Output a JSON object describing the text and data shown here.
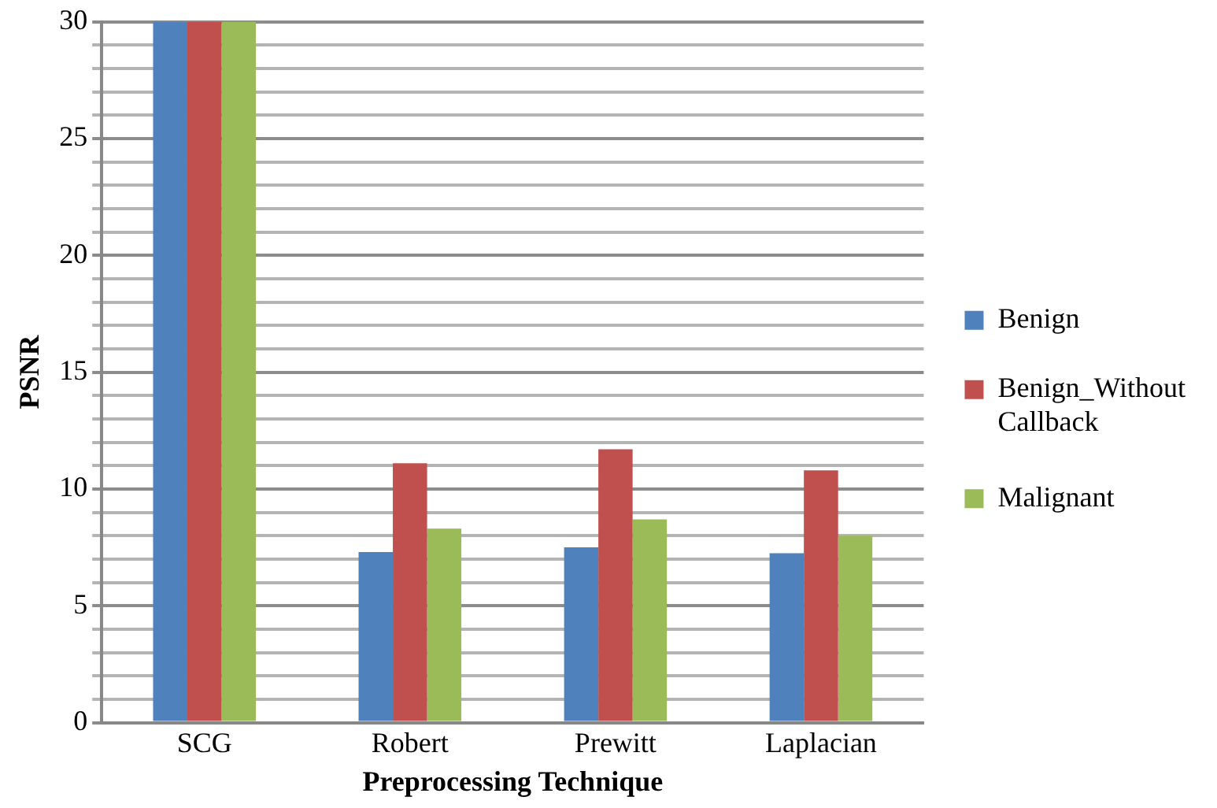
{
  "chart_data": {
    "type": "bar",
    "xlabel": "Preprocessing Technique",
    "ylabel": "PSNR",
    "categories": [
      "SCG",
      "Robert",
      "Prewitt",
      "Laplacian"
    ],
    "series": [
      {
        "name": "Benign",
        "color": "#4f81bd",
        "values": [
          30,
          7.3,
          7.5,
          7.25
        ]
      },
      {
        "name": "Benign_Without Callback",
        "color": "#c0504d",
        "values": [
          30,
          11.1,
          11.7,
          10.8
        ]
      },
      {
        "name": "Malignant",
        "color": "#9bbb59",
        "values": [
          30,
          8.3,
          8.7,
          8.0
        ]
      }
    ],
    "ylim": [
      0,
      30
    ],
    "yticks": [
      0,
      {
        "value": 1,
        "label": null
      },
      {
        "value": 2,
        "label": null
      },
      {
        "value": 3,
        "label": null
      },
      {
        "value": 4,
        "label": null
      },
      5,
      {
        "value": 6,
        "label": null
      },
      {
        "value": 7,
        "label": null
      },
      {
        "value": 8,
        "label": null
      },
      {
        "value": 9,
        "label": null
      },
      10,
      {
        "value": 11,
        "label": null
      },
      {
        "value": 12,
        "label": null
      },
      {
        "value": 13,
        "label": null
      },
      {
        "value": 14,
        "label": null
      },
      15,
      {
        "value": 16,
        "label": null
      },
      {
        "value": 17,
        "label": null
      },
      {
        "value": 18,
        "label": null
      },
      {
        "value": 19,
        "label": null
      },
      20,
      {
        "value": 21,
        "label": null
      },
      {
        "value": 22,
        "label": null
      },
      {
        "value": 23,
        "label": null
      },
      {
        "value": 24,
        "label": null
      },
      25,
      {
        "value": 26,
        "label": null
      },
      {
        "value": 27,
        "label": null
      },
      {
        "value": 28,
        "label": null
      },
      {
        "value": 29,
        "label": null
      },
      30
    ],
    "grid": "y",
    "legend": "right"
  }
}
